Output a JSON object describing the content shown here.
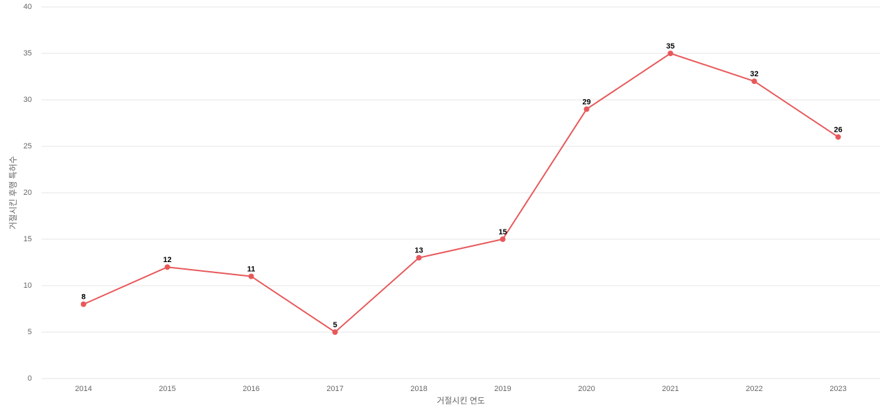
{
  "chart_data": {
    "type": "line",
    "x_label": "거절시킨 연도",
    "y_label": "거절시킨 후행 특허수",
    "categories": [
      "2014",
      "2015",
      "2016",
      "2017",
      "2018",
      "2019",
      "2020",
      "2021",
      "2022",
      "2023"
    ],
    "values": [
      8,
      12,
      11,
      5,
      13,
      15,
      29,
      35,
      32,
      26
    ],
    "color": "#e8585a",
    "ylim": [
      0,
      40
    ],
    "yticks": [
      0,
      5,
      10,
      15,
      20,
      25,
      30,
      35,
      40
    ],
    "grid": true
  }
}
